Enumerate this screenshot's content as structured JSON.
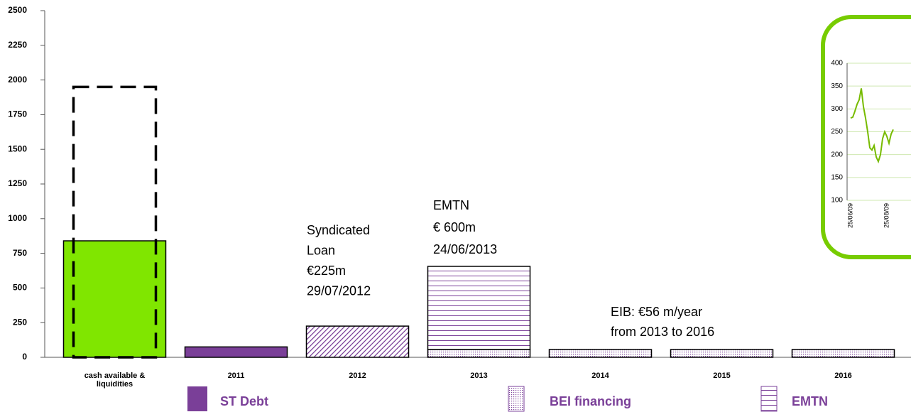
{
  "chart_data": [
    {
      "type": "bar",
      "categories": [
        "cash available & liquidities",
        "2011",
        "2012",
        "2013",
        "2014",
        "2015",
        "2016"
      ],
      "series": [
        {
          "color": "#80e600",
          "fill": "solid",
          "values": [
            840,
            null,
            null,
            null,
            null,
            null,
            null
          ]
        },
        {
          "color": "#000000",
          "fill": "dashed",
          "values": [
            1950,
            null,
            null,
            null,
            null,
            null,
            null
          ]
        },
        {
          "name": "ST Debt",
          "color": "#7a3f98",
          "fill": "solid",
          "values": [
            null,
            75,
            null,
            null,
            null,
            null,
            null
          ]
        },
        {
          "color": "#7a3f98",
          "fill": "diagonal",
          "values": [
            null,
            null,
            225,
            null,
            null,
            null,
            null
          ]
        },
        {
          "name": "BEI financing",
          "color": "#7a3f98",
          "fill": "dots",
          "values": [
            null,
            null,
            null,
            56,
            56,
            56,
            56
          ]
        },
        {
          "name": "EMTN",
          "color": "#7a3f98",
          "fill": "horizontal",
          "values": [
            null,
            null,
            null,
            600,
            null,
            null,
            null
          ]
        }
      ],
      "annotations": [
        [
          "Syndicated",
          "Loan",
          "€225m",
          "29/07/2012"
        ],
        [
          "EMTN",
          "€ 600m",
          "24/06/2013"
        ],
        [
          "EIB: €56 m/year",
          "from 2013 to 2016"
        ]
      ],
      "ylim": [
        0,
        2500
      ],
      "yticks": [
        0,
        250,
        500,
        750,
        1000,
        1250,
        1500,
        1750,
        2000,
        2250,
        2500
      ]
    },
    {
      "type": "line",
      "categories": [
        "25/06/09",
        null,
        null,
        null,
        null,
        null,
        null,
        null,
        null,
        null,
        null,
        null,
        null,
        null,
        null,
        null,
        null,
        "25/08/09",
        null,
        null,
        null
      ],
      "values": [
        280,
        282,
        295,
        310,
        320,
        345,
        305,
        280,
        250,
        215,
        210,
        220,
        195,
        185,
        200,
        235,
        250,
        240,
        225,
        245,
        255
      ],
      "color": "#77bb00",
      "ylim": [
        100,
        400
      ],
      "yticks": [
        100,
        150,
        200,
        250,
        300,
        350,
        400
      ],
      "grid": true
    }
  ]
}
